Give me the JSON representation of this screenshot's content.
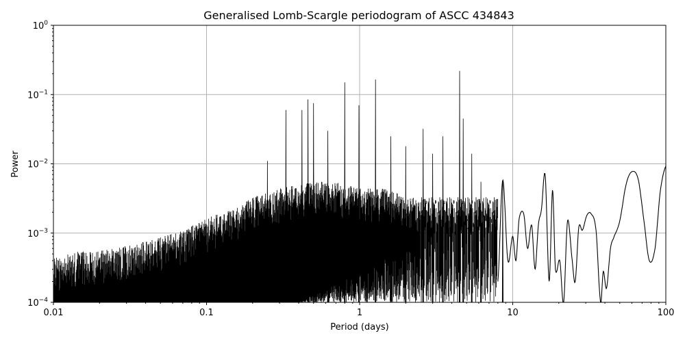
{
  "chart_data": {
    "type": "line",
    "title": "Generalised Lomb-Scargle periodogram of ASCC 434843",
    "xlabel": "Period (days)",
    "ylabel": "Power",
    "xscale": "log",
    "yscale": "log",
    "xlim": [
      0.01,
      100
    ],
    "ylim": [
      0.0001,
      1
    ],
    "grid": true,
    "legend": null,
    "x_ticks": [
      0.01,
      0.1,
      1,
      10,
      100
    ],
    "x_tick_labels": [
      "0.01",
      "0.1",
      "1",
      "10",
      "100"
    ],
    "y_ticks": [
      0.0001,
      0.001,
      0.01,
      0.1,
      1
    ],
    "y_tick_labels": [
      "10^-4",
      "10^-3",
      "10^-2",
      "10^-1",
      "10^0"
    ],
    "line_color": "#000000",
    "grid_color": "#b0b0b0",
    "envelope": {
      "description": "Upper envelope of the dense noisy periodogram (period days -> approx. max power)",
      "x": [
        0.01,
        0.015,
        0.02,
        0.03,
        0.05,
        0.07,
        0.1,
        0.15,
        0.2,
        0.3,
        0.5,
        0.7,
        1.0,
        1.5,
        2.0,
        3.0
      ],
      "y": [
        0.0004,
        0.0005,
        0.0005,
        0.0006,
        0.0008,
        0.001,
        0.0015,
        0.002,
        0.003,
        0.004,
        0.005,
        0.005,
        0.004,
        0.004,
        0.003,
        0.003
      ]
    },
    "floor": {
      "x": [
        0.01,
        0.03,
        0.1,
        0.3,
        0.5,
        1.0
      ],
      "y": [
        0.0001,
        0.0001,
        0.0001,
        0.0001,
        0.0001,
        0.0001
      ]
    },
    "peaks": [
      {
        "period": 0.25,
        "power": 0.011
      },
      {
        "period": 0.33,
        "power": 0.06
      },
      {
        "period": 0.42,
        "power": 0.06
      },
      {
        "period": 0.46,
        "power": 0.085
      },
      {
        "period": 0.5,
        "power": 0.075
      },
      {
        "period": 0.62,
        "power": 0.03
      },
      {
        "period": 0.8,
        "power": 0.15
      },
      {
        "period": 0.99,
        "power": 0.07
      },
      {
        "period": 1.27,
        "power": 0.165
      },
      {
        "period": 1.6,
        "power": 0.025
      },
      {
        "period": 2.0,
        "power": 0.018
      },
      {
        "period": 2.6,
        "power": 0.032
      },
      {
        "period": 3.0,
        "power": 0.014
      },
      {
        "period": 3.5,
        "power": 0.025
      },
      {
        "period": 4.5,
        "power": 0.22
      },
      {
        "period": 4.75,
        "power": 0.045
      },
      {
        "period": 5.4,
        "power": 0.014
      },
      {
        "period": 6.2,
        "power": 0.0055
      },
      {
        "period": 8.6,
        "power": 0.0058
      }
    ],
    "smooth_tail": {
      "description": "Smooth long-period section (period days -> power)",
      "x": [
        8.0,
        8.6,
        9.3,
        10.0,
        10.5,
        11.0,
        11.8,
        12.5,
        13.3,
        14.0,
        14.7,
        15.4,
        16.3,
        17.3,
        18.2,
        19.0,
        20.3,
        21.5,
        22.8,
        24.5,
        25.6,
        27.0,
        28.5,
        30.5,
        32.5,
        35.0,
        37.5,
        39.0,
        41.0,
        43.5,
        46.0,
        50.0,
        55.0,
        60.0,
        66.0,
        72.0,
        78.0,
        85.0,
        92.0,
        100.0
      ],
      "y": [
        0.0002,
        0.0058,
        0.0004,
        0.0009,
        0.0004,
        0.0016,
        0.0019,
        0.0006,
        0.0013,
        0.0003,
        0.0013,
        0.0022,
        0.0068,
        0.0002,
        0.0042,
        0.0003,
        0.0004,
        0.0001,
        0.0015,
        0.0004,
        0.0002,
        0.0012,
        0.0011,
        0.0018,
        0.0019,
        0.0011,
        0.0001,
        0.00028,
        0.00016,
        0.0006,
        0.0009,
        0.0015,
        0.005,
        0.0077,
        0.006,
        0.0015,
        0.0004,
        0.0006,
        0.004,
        0.0093
      ]
    }
  }
}
